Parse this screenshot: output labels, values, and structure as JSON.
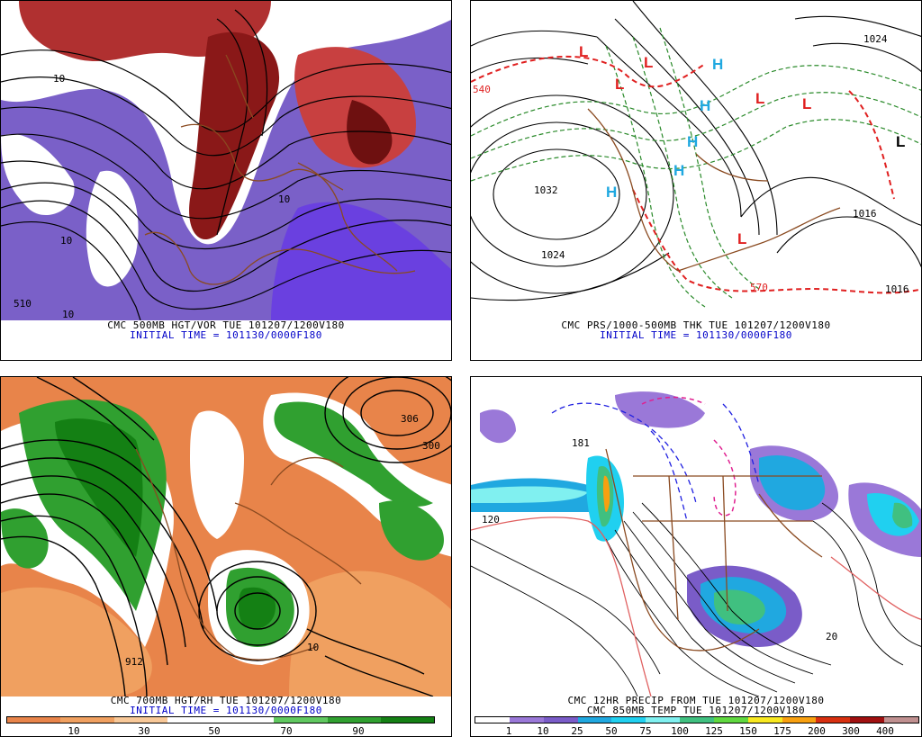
{
  "panels": {
    "p1": {
      "caption_line1": "CMC 500MB HGT/VOR TUE 101207/1200V180",
      "caption_line2": "INITIAL TIME = 101130/0000F180",
      "contour_labels": [
        "10",
        "10",
        "510",
        "10",
        "10"
      ]
    },
    "p2": {
      "caption_line1": "CMC PRS/1000-500MB THK TUE 101207/1200V180",
      "caption_line2": "INITIAL TIME = 101130/0000F180",
      "contour_labels": [
        "1032",
        "1024",
        "1016",
        "1024",
        "1016",
        "570",
        "540"
      ],
      "high_symbol": "H",
      "low_symbol": "L"
    },
    "p3": {
      "caption_line1": "CMC 700MB HGT/RH TUE 101207/1200V180",
      "caption_line2": "INITIAL TIME = 101130/0000F180",
      "contour_labels": [
        "306",
        "300",
        "912",
        "10"
      ],
      "colorbar_ticks": [
        "10",
        "30",
        "50",
        "70",
        "90"
      ],
      "colorbar_colors": [
        "#e8844a",
        "#f0a060",
        "#f8c898",
        "#ffffff",
        "#ffffff",
        "#60c860",
        "#30a030",
        "#148014"
      ]
    },
    "p4": {
      "caption_line1": "CMC 12HR PRECIP FROM TUE 101207/1200V180",
      "caption_line2": "CMC 850MB TEMP TUE 101207/1200V180",
      "contour_labels": [
        "181",
        "120",
        "20"
      ],
      "colorbar_ticks": [
        "1",
        "10",
        "25",
        "50",
        "75",
        "100",
        "125",
        "150",
        "175",
        "200",
        "300",
        "400"
      ],
      "colorbar_colors": [
        "#ffffff",
        "#9a78d8",
        "#7a5cc8",
        "#20a8e0",
        "#20d0f0",
        "#80f0f0",
        "#40c080",
        "#60d840",
        "#f8e820",
        "#f8a010",
        "#d83010",
        "#a01010",
        "#c09090"
      ]
    }
  }
}
